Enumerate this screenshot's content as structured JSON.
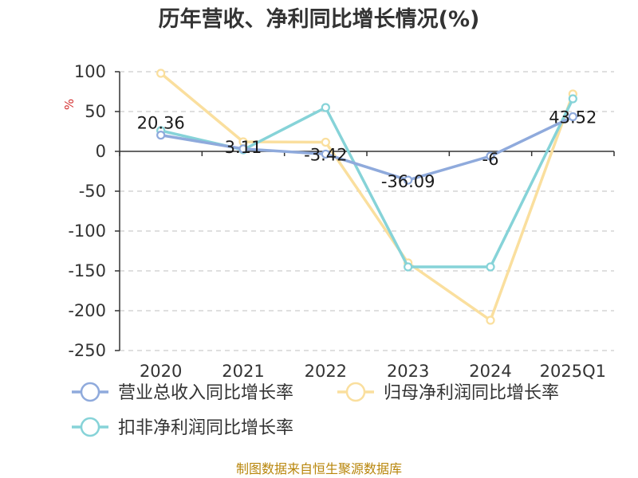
{
  "chart_data": {
    "type": "line",
    "title": "历年营收、净利同比增长情况(%)",
    "ylabel": "%",
    "xlabel": "",
    "categories": [
      "2020",
      "2021",
      "2022",
      "2023",
      "2024",
      "2025Q1"
    ],
    "ylim": [
      -250,
      100
    ],
    "yticks": [
      100,
      50,
      0,
      -50,
      -100,
      -150,
      -200,
      -250
    ],
    "grid": true,
    "legend_position": "bottom",
    "series": [
      {
        "name": "营业总收入同比增长率",
        "color": "#8faadc",
        "values": [
          20.36,
          3.11,
          -3.42,
          -36.09,
          -6,
          43.52
        ],
        "labels": [
          "20.36",
          "3.11",
          "-3.42",
          "-36.09",
          "-6",
          "43.52"
        ]
      },
      {
        "name": "归母净利润同比增长率",
        "color": "#fadf9e",
        "values": [
          98,
          12,
          11.5,
          -140,
          -212,
          72
        ]
      },
      {
        "name": "扣非净利润同比增长率",
        "color": "#86d3d8",
        "values": [
          26,
          2,
          55,
          -145,
          -145,
          66
        ]
      }
    ]
  },
  "source": "制图数据来自恒生聚源数据库"
}
